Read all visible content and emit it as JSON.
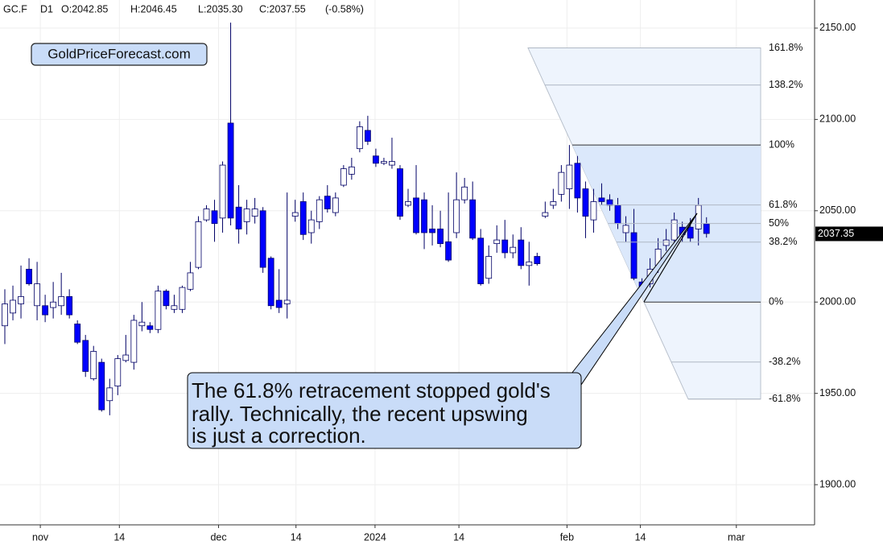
{
  "header": {
    "symbol": "GC.F",
    "timeframe": "D1",
    "open": "O:2042.85",
    "high": "H:2046.45",
    "low": "L:2035.30",
    "close": "C:2037.55",
    "change": "(-0.58%)"
  },
  "watermark": "GoldPriceForecast.com",
  "annotation": {
    "lines": [
      "The 61.8% retracement stopped gold's",
      "rally. Technically, the recent upswing",
      "is just a correction."
    ]
  },
  "chart_data": {
    "type": "candlestick",
    "up_color": "#ffffff",
    "down_color": "#0000ff",
    "wick_color": "#000066",
    "open": [
      1987,
      1994,
      1999,
      2018,
      1998,
      1998,
      1997,
      1998,
      2003,
      1988,
      1979,
      1958,
      1967,
      1946,
      1954,
      1968,
      1967,
      1987,
      1987,
      1985,
      2006,
      1996,
      1996,
      2007,
      2019,
      2045,
      2050,
      2046,
      2098,
      2052,
      2044,
      2047,
      2050,
      2024,
      2001,
      1999,
      2047,
      2055,
      2038,
      2044,
      2058,
      2049,
      2064,
      2070,
      2084,
      2094,
      2080,
      2076,
      2075,
      2073,
      2053,
      2057,
      2056,
      2040,
      2040,
      2033,
      2038,
      2056,
      2056,
      2035,
      2013,
      2032,
      2034,
      2027,
      2034,
      2020,
      2025,
      2047,
      2053,
      2059,
      2062,
      2076,
      2062,
      2045,
      2057,
      2056,
      2053,
      2038,
      2038,
      2011,
      2010,
      2020,
      2031,
      2034,
      2041,
      2041,
      2040,
      2042.85
    ],
    "high": [
      2007,
      2009,
      2020,
      2024,
      2022,
      2004,
      2011,
      2016,
      2007,
      1990,
      1982,
      1976,
      1969,
      1958,
      1971,
      1982,
      1993,
      2000,
      1989,
      2009,
      2007,
      2004,
      2009,
      2022,
      2047,
      2053,
      2056,
      2077,
      2153,
      2064,
      2056,
      2057,
      2052,
      2025,
      2018,
      2060,
      2056,
      2060,
      2050,
      2058,
      2064,
      2060,
      2075,
      2079,
      2099,
      2102,
      2084,
      2079,
      2090,
      2075,
      2062,
      2075,
      2060,
      2053,
      2050,
      2060,
      2071,
      2068,
      2066,
      2040,
      2031,
      2042,
      2045,
      2037,
      2041,
      2033,
      2027,
      2055,
      2062,
      2075,
      2086,
      2080,
      2066,
      2062,
      2065,
      2059,
      2057,
      2047,
      2051,
      2013,
      2024,
      2035,
      2040,
      2049,
      2044,
      2046,
      2057,
      2046.45
    ],
    "low": [
      1977,
      1990,
      1991,
      2009,
      1990,
      1989,
      1991,
      1993,
      1991,
      1977,
      1959,
      1957,
      1940,
      1938,
      1949,
      1967,
      1963,
      1984,
      1983,
      1983,
      1996,
      1994,
      1994,
      2006,
      2018,
      2044,
      2033,
      2038,
      2042,
      2032,
      2037,
      2043,
      2016,
      1996,
      1994,
      1991,
      2044,
      2034,
      2032,
      2040,
      2049,
      2047,
      2063,
      2067,
      2082,
      2086,
      2074,
      2075,
      2073,
      2045,
      2052,
      2037,
      2029,
      2031,
      2030,
      2022,
      2035,
      2054,
      2034,
      2009,
      2010,
      2027,
      2024,
      2024,
      2018,
      2009,
      2020,
      2046,
      2051,
      2055,
      2051,
      2049,
      2035,
      2038,
      2053,
      2050,
      2040,
      2033,
      2012,
      2006,
      2008,
      2016,
      2028,
      2031,
      2033,
      2033,
      2031,
      2035.3
    ],
    "close": [
      1999,
      2001,
      2003,
      2010,
      2010,
      1993,
      2000,
      2003,
      1993,
      1978,
      1962,
      1973,
      1941,
      1953,
      1969,
      1971,
      1990,
      1989,
      1985,
      2006,
      1998,
      1998,
      2008,
      2016,
      2044,
      2051,
      2043,
      2075,
      2046,
      2040,
      2051,
      2051,
      2019,
      1998,
      1997,
      2001,
      2049,
      2037,
      2045,
      2056,
      2051,
      2057,
      2073,
      2074,
      2096,
      2088,
      2076,
      2077,
      2077,
      2047,
      2055,
      2038,
      2038,
      2038,
      2032,
      2023,
      2056,
      2063,
      2035,
      2010,
      2025,
      2034,
      2027,
      2030,
      2020,
      2022,
      2021,
      2049,
      2055,
      2071,
      2075,
      2057,
      2047,
      2055,
      2055,
      2053,
      2043,
      2042,
      2013,
      2008,
      2018,
      2029,
      2034,
      2045,
      2037,
      2035,
      2053,
      2037.55
    ],
    "xlim": [
      -0.6,
      100.4
    ],
    "xticks": [
      {
        "value": 4.4,
        "label": "nov"
      },
      {
        "value": 14.2,
        "label": "14"
      },
      {
        "value": 26.5,
        "label": "dec"
      },
      {
        "value": 36.1,
        "label": "14"
      },
      {
        "value": 45.9,
        "label": "2024"
      },
      {
        "value": 56.3,
        "label": "14"
      },
      {
        "value": 69.7,
        "label": "feb"
      },
      {
        "value": 78.8,
        "label": "14"
      },
      {
        "value": 90.7,
        "label": "mar"
      }
    ],
    "ylim": [
      1878,
      2165.4
    ],
    "yticks": [
      {
        "value": 1900,
        "label": "1900.00"
      },
      {
        "value": 1950,
        "label": "1950.00"
      },
      {
        "value": 2000,
        "label": "2000.00"
      },
      {
        "value": 2050,
        "label": "2050.00"
      },
      {
        "value": 2100,
        "label": "2100.00"
      },
      {
        "value": 2150,
        "label": "2150.00"
      }
    ],
    "grid": true,
    "last_price": 2037.35,
    "fibonacci": {
      "high": 2086,
      "low": 2000,
      "color": "#dbe8fb",
      "outer_color": "#eef4fd",
      "levels": [
        {
          "value": 161.8,
          "label": "161.8%"
        },
        {
          "value": 138.2,
          "label": "138.2%"
        },
        {
          "value": 100,
          "label": "100%"
        },
        {
          "value": 61.8,
          "label": "61.8%"
        },
        {
          "value": 50,
          "label": "50%"
        },
        {
          "value": 38.2,
          "label": "38.2%"
        },
        {
          "value": 0,
          "label": "0%"
        },
        {
          "value": -38.2,
          "label": "-38.2%"
        },
        {
          "value": -61.8,
          "label": "-61.8%"
        }
      ]
    }
  }
}
